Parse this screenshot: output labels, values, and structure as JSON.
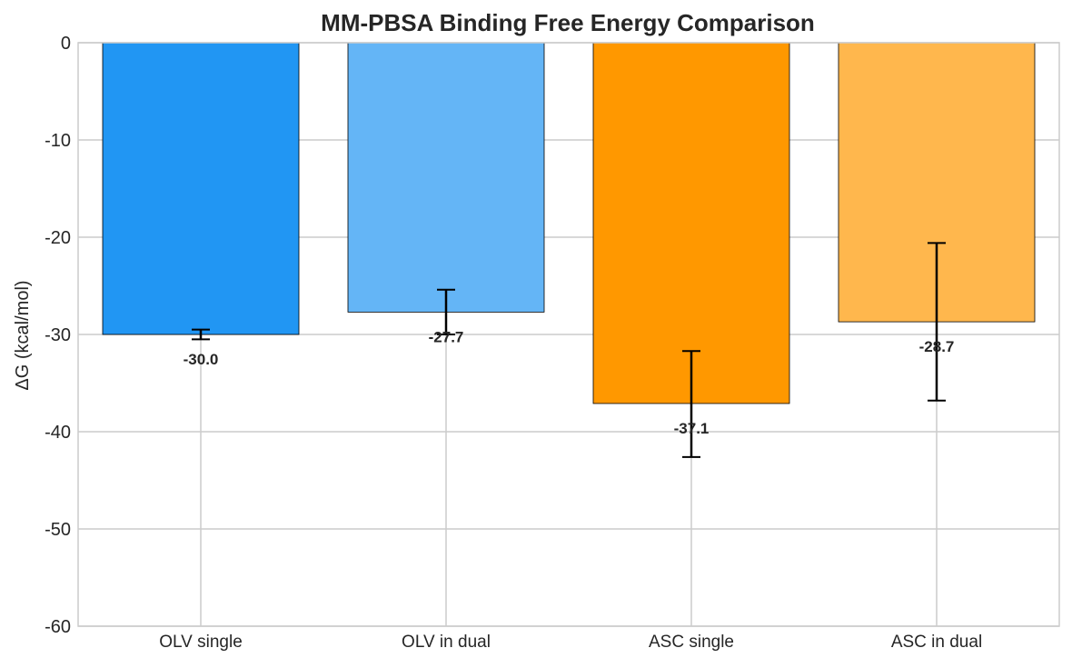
{
  "chart_data": {
    "type": "bar",
    "title": "MM-PBSA Binding Free Energy Comparison",
    "xlabel": "",
    "ylabel": "ΔG (kcal/mol)",
    "ylim": [
      -60,
      0
    ],
    "yticks": [
      0,
      -10,
      -20,
      -30,
      -40,
      -50,
      -60
    ],
    "grid": true,
    "categories": [
      "OLV single",
      "OLV in dual",
      "ASC single",
      "ASC in dual"
    ],
    "values": [
      -30.0,
      -27.7,
      -37.1,
      -28.7
    ],
    "error_lower": [
      -30.5,
      -30.0,
      -42.6,
      -36.8
    ],
    "error_upper": [
      -29.5,
      -25.4,
      -31.7,
      -20.6
    ],
    "data_labels": [
      "-30.0",
      "-27.7",
      "-37.1",
      "-28.7"
    ],
    "colors": [
      "#2196F3",
      "#64B5F6",
      "#FF9800",
      "#FFB74D"
    ]
  }
}
